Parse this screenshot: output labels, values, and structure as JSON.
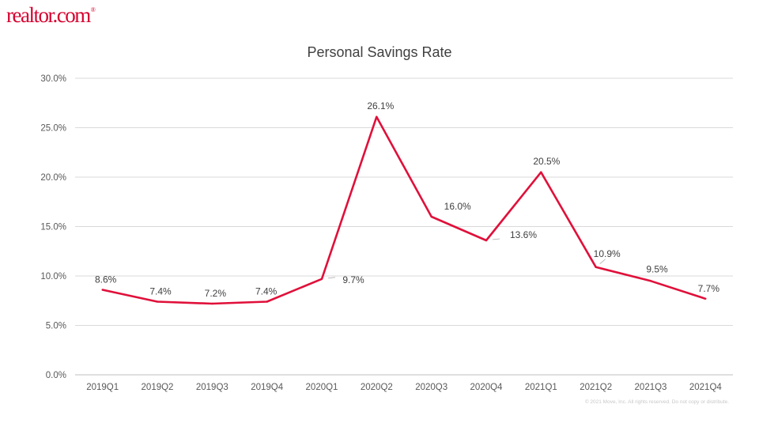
{
  "brand": {
    "logo_text": "realtor.com",
    "logo_mark": "®",
    "color": "#d6002f"
  },
  "chart_data": {
    "type": "line",
    "title": "Personal Savings Rate",
    "categories": [
      "2019Q1",
      "2019Q2",
      "2019Q3",
      "2019Q4",
      "2020Q1",
      "2020Q2",
      "2020Q3",
      "2020Q4",
      "2021Q1",
      "2021Q2",
      "2021Q3",
      "2021Q4"
    ],
    "series": [
      {
        "values": [
          8.6,
          7.4,
          7.2,
          7.4,
          9.7,
          26.1,
          16.0,
          13.6,
          20.5,
          10.9,
          9.5,
          7.7
        ],
        "labels": [
          "8.6%",
          "7.4%",
          "7.2%",
          "7.4%",
          "9.7%",
          "26.1%",
          "16.0%",
          "13.6%",
          "20.5%",
          "10.9%",
          "9.5%",
          "7.7%"
        ],
        "color": "#e0103a"
      }
    ],
    "yticks": [
      "0.0%",
      "5.0%",
      "10.0%",
      "15.0%",
      "20.0%",
      "25.0%",
      "30.0%"
    ],
    "ylim": [
      0,
      30
    ],
    "grid": true,
    "xlabel": "",
    "ylabel": ""
  },
  "footer": {
    "copyright": "© 2021 Move, Inc. All rights reserved. Do not copy or distribute."
  }
}
